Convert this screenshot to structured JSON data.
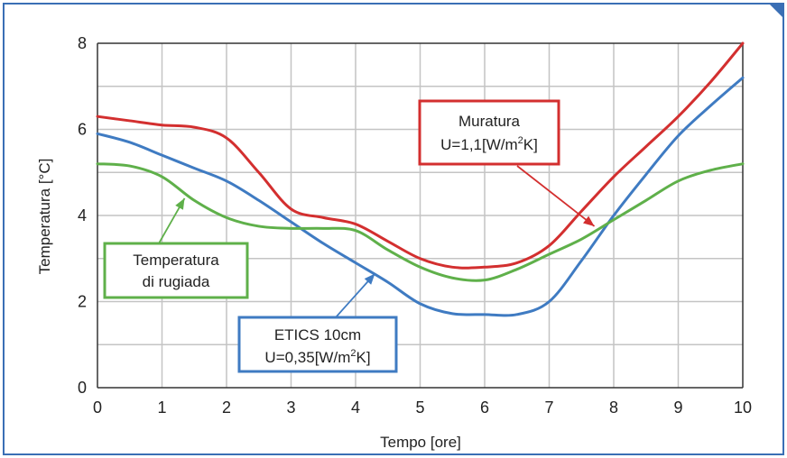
{
  "chart_data": {
    "type": "line",
    "xlabel": "Tempo [ore]",
    "ylabel": "Temperatura [°C]",
    "xlim": [
      0,
      10
    ],
    "ylim": [
      0,
      8
    ],
    "xticks": [
      "0",
      "1",
      "2",
      "3",
      "4",
      "5",
      "6",
      "7",
      "8",
      "9",
      "10"
    ],
    "yticks": [
      "0",
      "2",
      "4",
      "6",
      "8"
    ],
    "grid": true,
    "frame_color": "#3a6fb5",
    "series": [
      {
        "name": "Muratura U=1,1[W/m²K]",
        "color": "#d32f2f",
        "x": [
          0,
          0.5,
          1,
          1.5,
          2,
          2.5,
          3,
          3.5,
          4,
          4.5,
          5,
          5.5,
          6,
          6.5,
          7,
          7.5,
          8,
          8.5,
          9,
          9.5,
          10
        ],
        "y": [
          6.3,
          6.2,
          6.1,
          6.05,
          5.8,
          5.0,
          4.15,
          3.95,
          3.8,
          3.4,
          3.0,
          2.8,
          2.8,
          2.9,
          3.3,
          4.1,
          4.9,
          5.6,
          6.3,
          7.1,
          8.0
        ]
      },
      {
        "name": "ETICS 10cm U=0,35[W/m²K]",
        "color": "#3f7bc2",
        "x": [
          0,
          0.5,
          1,
          1.5,
          2,
          2.5,
          3,
          3.5,
          4,
          4.5,
          5,
          5.5,
          6,
          6.5,
          7,
          7.5,
          8,
          8.5,
          9,
          9.5,
          10
        ],
        "y": [
          5.9,
          5.7,
          5.4,
          5.1,
          4.8,
          4.35,
          3.85,
          3.35,
          2.9,
          2.45,
          1.95,
          1.72,
          1.7,
          1.7,
          2.0,
          2.95,
          4.0,
          4.95,
          5.85,
          6.55,
          7.2
        ]
      },
      {
        "name": "Temperatura di rugiada",
        "color": "#5fb04a",
        "x": [
          0,
          0.5,
          1,
          1.5,
          2,
          2.5,
          3,
          3.5,
          4,
          4.5,
          5,
          5.5,
          6,
          6.5,
          7,
          7.5,
          8,
          8.5,
          9,
          9.5,
          10
        ],
        "y": [
          5.2,
          5.15,
          4.9,
          4.35,
          3.95,
          3.75,
          3.7,
          3.7,
          3.65,
          3.2,
          2.8,
          2.55,
          2.5,
          2.75,
          3.1,
          3.45,
          3.9,
          4.35,
          4.8,
          5.05,
          5.2
        ]
      }
    ],
    "annotations": [
      {
        "lines": [
          "Muratura",
          "U=1,1[W/m",
          "2",
          "K]"
        ],
        "color": "#d32f2f",
        "arrow_to": [
          7.7,
          3.75
        ]
      },
      {
        "lines": [
          "ETICS 10cm",
          "U=0,35[W/m",
          "2",
          "K]"
        ],
        "color": "#3f7bc2",
        "arrow_to": [
          4.3,
          2.65
        ]
      },
      {
        "lines": [
          "Temperatura",
          "di rugiada"
        ],
        "color": "#5fb04a",
        "arrow_to": [
          1.35,
          4.4
        ]
      }
    ]
  }
}
